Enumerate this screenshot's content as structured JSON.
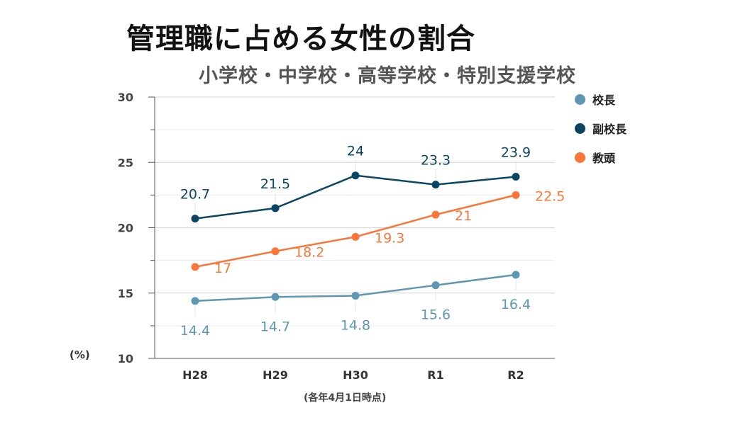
{
  "title": "管理職に占める女性の割合",
  "subtitle": "小学校・中学校・高等学校・特別支援学校",
  "unit_label": "(%)",
  "note": "(各年4月1日時点)",
  "chart_data": {
    "type": "line",
    "title": "管理職に占める女性の割合",
    "subtitle": "小学校・中学校・高等学校・特別支援学校",
    "categories": [
      "H28",
      "H29",
      "H30",
      "R1",
      "R2"
    ],
    "ylim": [
      10,
      30
    ],
    "yticks": [
      10,
      15,
      20,
      25,
      30
    ],
    "ylabel": "(%)",
    "xlabel": "(各年4月1日時点)",
    "grid": true,
    "legend_position": "right",
    "series": [
      {
        "name": "校長",
        "color": "#5d97b4",
        "values": [
          14.4,
          14.7,
          14.8,
          15.6,
          16.4
        ],
        "labels": [
          "14.4",
          "14.7",
          "14.8",
          "15.6",
          "16.4"
        ]
      },
      {
        "name": "副校長",
        "color": "#0b4564",
        "values": [
          20.7,
          21.5,
          24,
          23.3,
          23.9
        ],
        "labels": [
          "20.7",
          "21.5",
          "24",
          "23.3",
          "23.9"
        ]
      },
      {
        "name": "教頭",
        "color": "#f97638",
        "values": [
          17,
          18.2,
          19.3,
          21,
          22.5
        ],
        "labels": [
          "17",
          "18.2",
          "19.3",
          "21",
          "22.5"
        ]
      }
    ]
  }
}
